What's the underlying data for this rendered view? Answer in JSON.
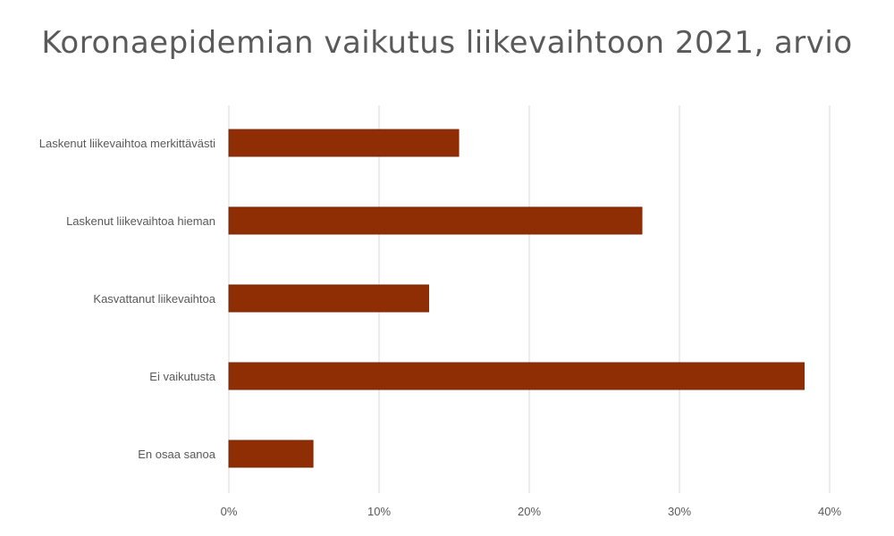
{
  "chart_data": {
    "type": "bar",
    "orientation": "horizontal",
    "title": "Koronaepidemian vaikutus liikevaihtoon 2021, arvio",
    "categories": [
      "Laskenut liikevaihtoa merkittävästi",
      "Laskenut liikevaihtoa hieman",
      "Kasvattanut liikevaihtoa",
      "Ei vaikutusta",
      "En osaa sanoa"
    ],
    "values": [
      15.3,
      27.5,
      13.3,
      38.3,
      5.6
    ],
    "xlim": [
      0,
      40
    ],
    "xticks": [
      "0%",
      "10%",
      "20%",
      "30%",
      "40%"
    ],
    "tick_values": [
      0,
      10,
      20,
      30,
      40
    ],
    "bar_color": "#8f2d05",
    "bar_edge_color": "#7a2604",
    "grid": true,
    "legend": "none"
  }
}
